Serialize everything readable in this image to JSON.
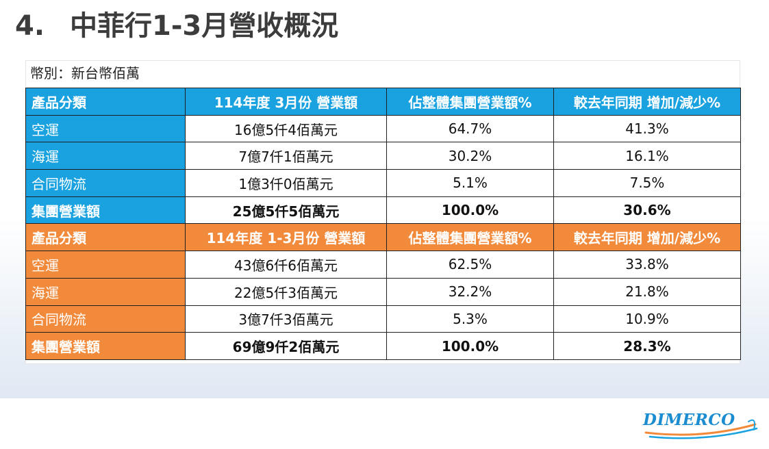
{
  "title": {
    "number": "4.",
    "text": "中菲行1-3月營收概況"
  },
  "unit_note": "幣別：新台幣佰萬",
  "colors": {
    "blue": "#19a2df",
    "orange": "#f28a3c"
  },
  "march": {
    "headers": [
      "產品分類",
      "114年度 3月份 營業額",
      "佔整體集團營業額%",
      "較去年同期 增加/減少%"
    ],
    "rows": [
      {
        "category": "空運",
        "revenue": "16億5仟4佰萬元",
        "share": "64.7%",
        "change": "41.3%"
      },
      {
        "category": "海運",
        "revenue": "7億7仟1佰萬元",
        "share": "30.2%",
        "change": "16.1%"
      },
      {
        "category": "合同物流",
        "revenue": "1億3仟0佰萬元",
        "share": "5.1%",
        "change": "7.5%"
      }
    ],
    "total": {
      "category": "集團營業額",
      "revenue": "25億5仟5佰萬元",
      "share": "100.0%",
      "change": "30.6%"
    }
  },
  "q1": {
    "headers": [
      "產品分類",
      "114年度 1-3月份 營業額",
      "佔整體集團營業額%",
      "較去年同期 增加/減少%"
    ],
    "rows": [
      {
        "category": "空運",
        "revenue": "43億6仟6佰萬元",
        "share": "62.5%",
        "change": "33.8%"
      },
      {
        "category": "海運",
        "revenue": "22億5仟3佰萬元",
        "share": "32.2%",
        "change": "21.8%"
      },
      {
        "category": "合同物流",
        "revenue": "3億7仟3佰萬元",
        "share": "5.3%",
        "change": "10.9%"
      }
    ],
    "total": {
      "category": "集團營業額",
      "revenue": "69億9仟2佰萬元",
      "share": "100.0%",
      "change": "28.3%"
    }
  },
  "logo": {
    "text": "DIMERCO"
  }
}
